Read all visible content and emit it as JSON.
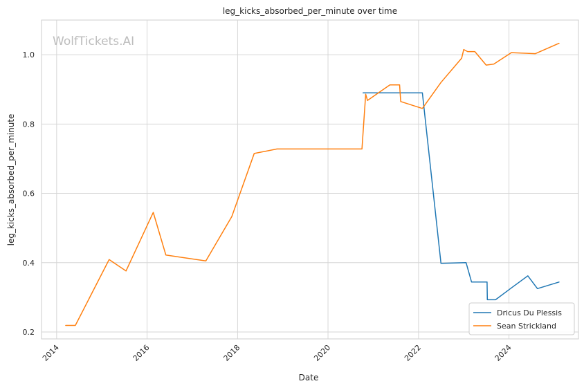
{
  "chart_data": {
    "type": "line",
    "title": "leg_kicks_absorbed_per_minute over time",
    "xlabel": "Date",
    "ylabel": "leg_kicks_absorbed_per_minute",
    "watermark": "WolfTickets.AI",
    "xlim": [
      "2013-09-01",
      "2025-07-15"
    ],
    "ylim": [
      0.18,
      1.1
    ],
    "x_ticks": [
      "2014",
      "2016",
      "2018",
      "2020",
      "2022",
      "2024"
    ],
    "y_ticks": [
      "0.2",
      "0.4",
      "0.6",
      "0.8",
      "1.0"
    ],
    "y_tick_values": [
      0.2,
      0.4,
      0.6,
      0.8,
      1.0
    ],
    "grid": true,
    "legend_position": "lower-right",
    "series": [
      {
        "name": "Dricus Du Plessis",
        "color": "#1f77b4",
        "points": [
          [
            "2020-10-10",
            0.89
          ],
          [
            "2022-02-01",
            0.89
          ],
          [
            "2022-07-01",
            0.398
          ],
          [
            "2023-01-20",
            0.4
          ],
          [
            "2023-03-05",
            0.344
          ],
          [
            "2023-07-08",
            0.344
          ],
          [
            "2023-07-10",
            0.293
          ],
          [
            "2023-09-15",
            0.293
          ],
          [
            "2024-01-20",
            0.327
          ],
          [
            "2024-06-01",
            0.362
          ],
          [
            "2024-08-18",
            0.325
          ],
          [
            "2025-02-08",
            0.344
          ]
        ]
      },
      {
        "name": "Sean Strickland",
        "color": "#ff7f0e",
        "points": [
          [
            "2014-03-15",
            0.219
          ],
          [
            "2014-06-01",
            0.219
          ],
          [
            "2015-03-01",
            0.409
          ],
          [
            "2015-07-15",
            0.376
          ],
          [
            "2016-02-20",
            0.545
          ],
          [
            "2016-06-01",
            0.422
          ],
          [
            "2017-04-20",
            0.405
          ],
          [
            "2017-11-15",
            0.533
          ],
          [
            "2018-05-15",
            0.715
          ],
          [
            "2018-11-15",
            0.728
          ],
          [
            "2020-10-01",
            0.728
          ],
          [
            "2020-10-31",
            0.886
          ],
          [
            "2020-11-15",
            0.868
          ],
          [
            "2021-05-15",
            0.913
          ],
          [
            "2021-08-01",
            0.913
          ],
          [
            "2021-08-10",
            0.865
          ],
          [
            "2022-02-01",
            0.845
          ],
          [
            "2022-07-01",
            0.92
          ],
          [
            "2022-12-15",
            0.99
          ],
          [
            "2023-01-01",
            1.015
          ],
          [
            "2023-02-01",
            1.009
          ],
          [
            "2023-04-01",
            1.009
          ],
          [
            "2023-07-01",
            0.97
          ],
          [
            "2023-09-01",
            0.973
          ],
          [
            "2024-01-20",
            1.006
          ],
          [
            "2024-08-01",
            1.003
          ],
          [
            "2025-02-08",
            1.033
          ]
        ]
      }
    ]
  }
}
